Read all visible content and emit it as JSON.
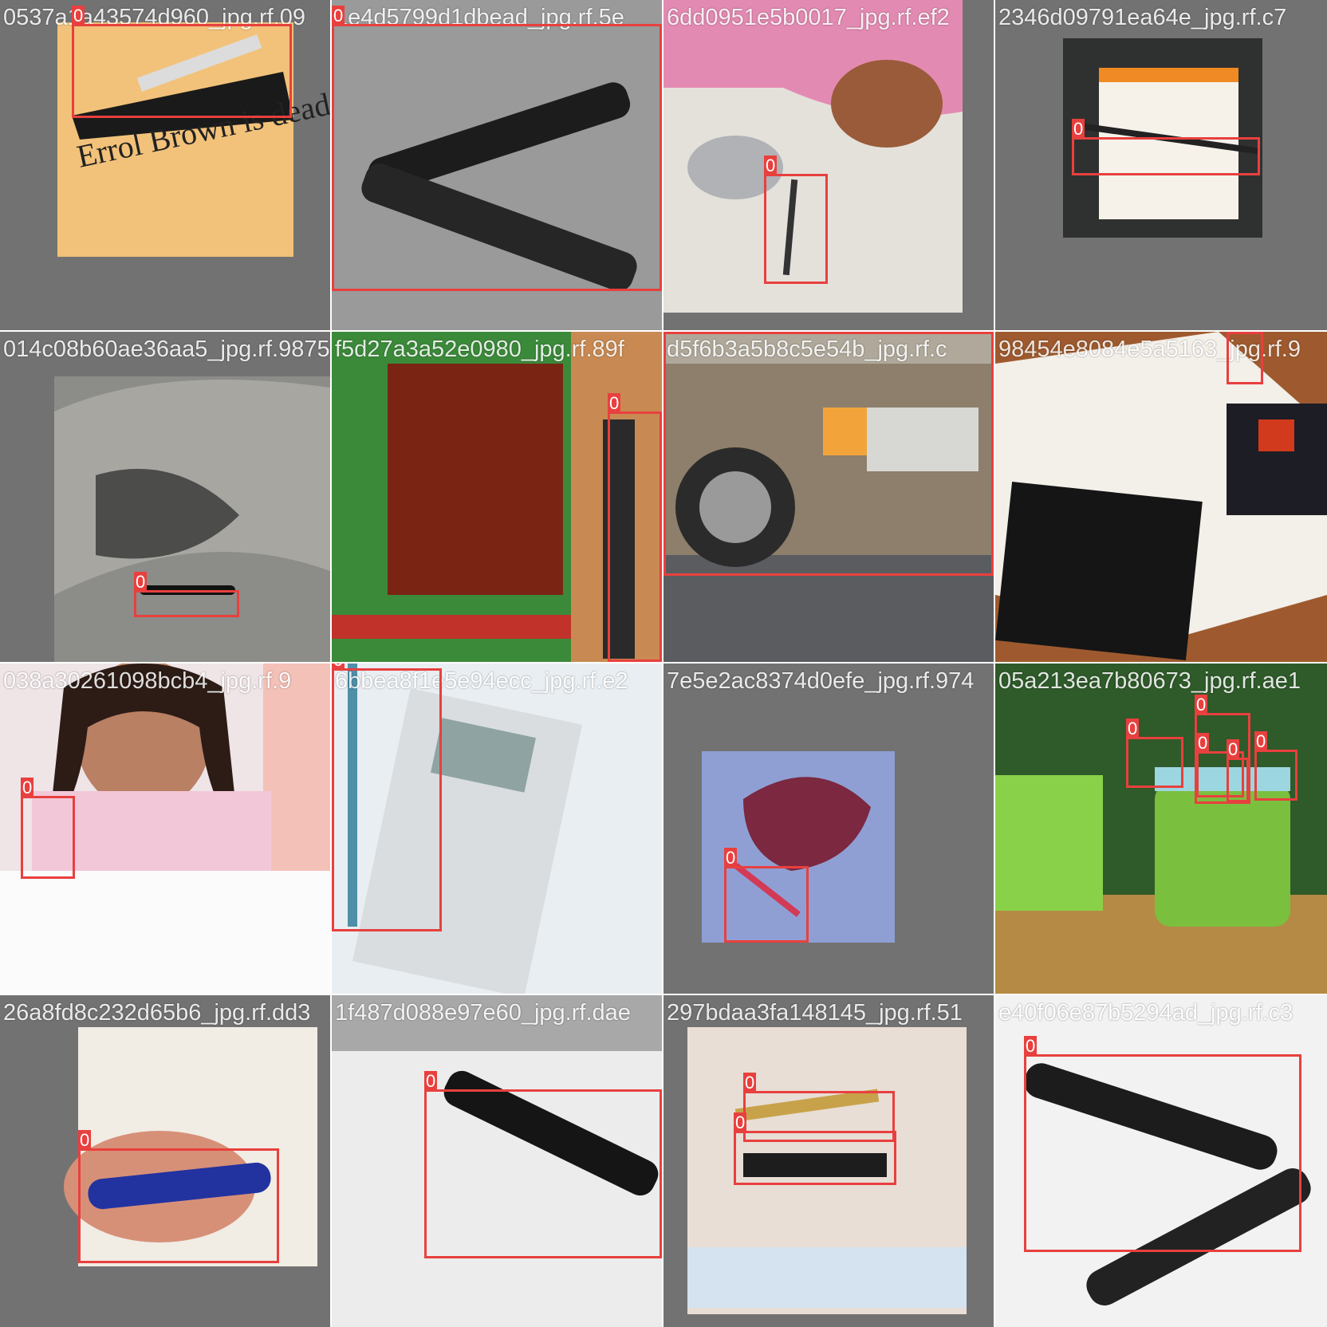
{
  "tiles": [
    {
      "caption": "0537a1a43574d960_jpg.rf.09",
      "boxes": [
        "0"
      ],
      "hint": "Errol Brown is dead."
    },
    {
      "caption": "1e4d5799d1dbead_jpg.rf.5e",
      "boxes": [
        "0"
      ]
    },
    {
      "caption": "6dd0951e5b0017_jpg.rf.ef2",
      "boxes": [
        "0"
      ]
    },
    {
      "caption": "2346d09791ea64e_jpg.rf.c7",
      "boxes": [
        "0"
      ]
    },
    {
      "caption": "014c08b60ae36aa5_jpg.rf.9875",
      "boxes": [
        "0"
      ]
    },
    {
      "caption": "f5d27a3a52e0980_jpg.rf.89f",
      "boxes": [
        "0"
      ]
    },
    {
      "caption": "d5f6b3a5b8c5e54b_jpg.rf.c",
      "boxes": [
        "0"
      ]
    },
    {
      "caption": "98454e8084e5a5163_jpg.rf.9",
      "boxes": [
        "0"
      ]
    },
    {
      "caption": "038a30261098bcb4_jpg.rf.9",
      "boxes": [
        "0"
      ]
    },
    {
      "caption": "6bbea8f1e5e94ecc_jpg.rf.e2",
      "boxes": [
        "0"
      ]
    },
    {
      "caption": "7e5e2ac8374d0efe_jpg.rf.974",
      "boxes": [
        "0"
      ]
    },
    {
      "caption": "05a213ea7b80673_jpg.rf.ae1",
      "boxes": [
        "0",
        "0",
        "0",
        "0",
        "0"
      ]
    },
    {
      "caption": "26a8fd8c232d65b6_jpg.rf.dd3",
      "boxes": [
        "0"
      ]
    },
    {
      "caption": "1f487d088e97e60_jpg.rf.dae",
      "boxes": [
        "0"
      ]
    },
    {
      "caption": "297bdaa3fa148145_jpg.rf.51",
      "boxes": [
        "0",
        "0"
      ]
    },
    {
      "caption": "e40f06e87b5294ad_jpg.rf.c3",
      "boxes": [
        "0"
      ]
    }
  ],
  "colors": {
    "box": "#e8403e",
    "padding": "#727272"
  }
}
